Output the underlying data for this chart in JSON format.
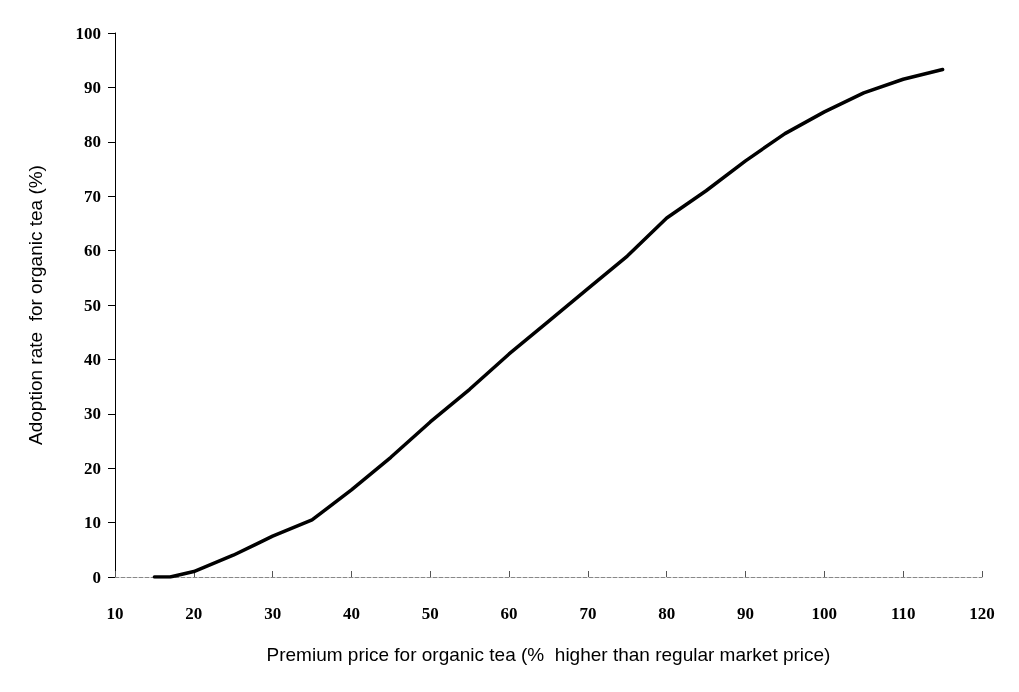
{
  "chart_data": {
    "type": "line",
    "xlabel": "Premium price for organic tea (%  higher than regular market price)",
    "ylabel": "Adoption rate  for organic tea (%)",
    "x": [
      15,
      17,
      20,
      25,
      30,
      35,
      40,
      45,
      50,
      55,
      60,
      65,
      70,
      75,
      80,
      85,
      90,
      95,
      100,
      105,
      110,
      115
    ],
    "series": [
      {
        "color": "#000000",
        "values": [
          0,
          0,
          1,
          4,
          7.5,
          10.5,
          16,
          22,
          28.5,
          34.5,
          41,
          47,
          53,
          59,
          66,
          71,
          76.5,
          81.5,
          85.5,
          89,
          91.5,
          93.3
        ]
      }
    ],
    "xlim": [
      10,
      120
    ],
    "xticks": [
      10,
      20,
      30,
      40,
      50,
      60,
      70,
      80,
      90,
      100,
      110,
      120
    ],
    "ylim": [
      0,
      100
    ],
    "yticks": [
      0,
      10,
      20,
      30,
      40,
      50,
      60,
      70,
      80,
      90,
      100
    ],
    "grid": false,
    "marker": "none",
    "line_style": "solid"
  }
}
